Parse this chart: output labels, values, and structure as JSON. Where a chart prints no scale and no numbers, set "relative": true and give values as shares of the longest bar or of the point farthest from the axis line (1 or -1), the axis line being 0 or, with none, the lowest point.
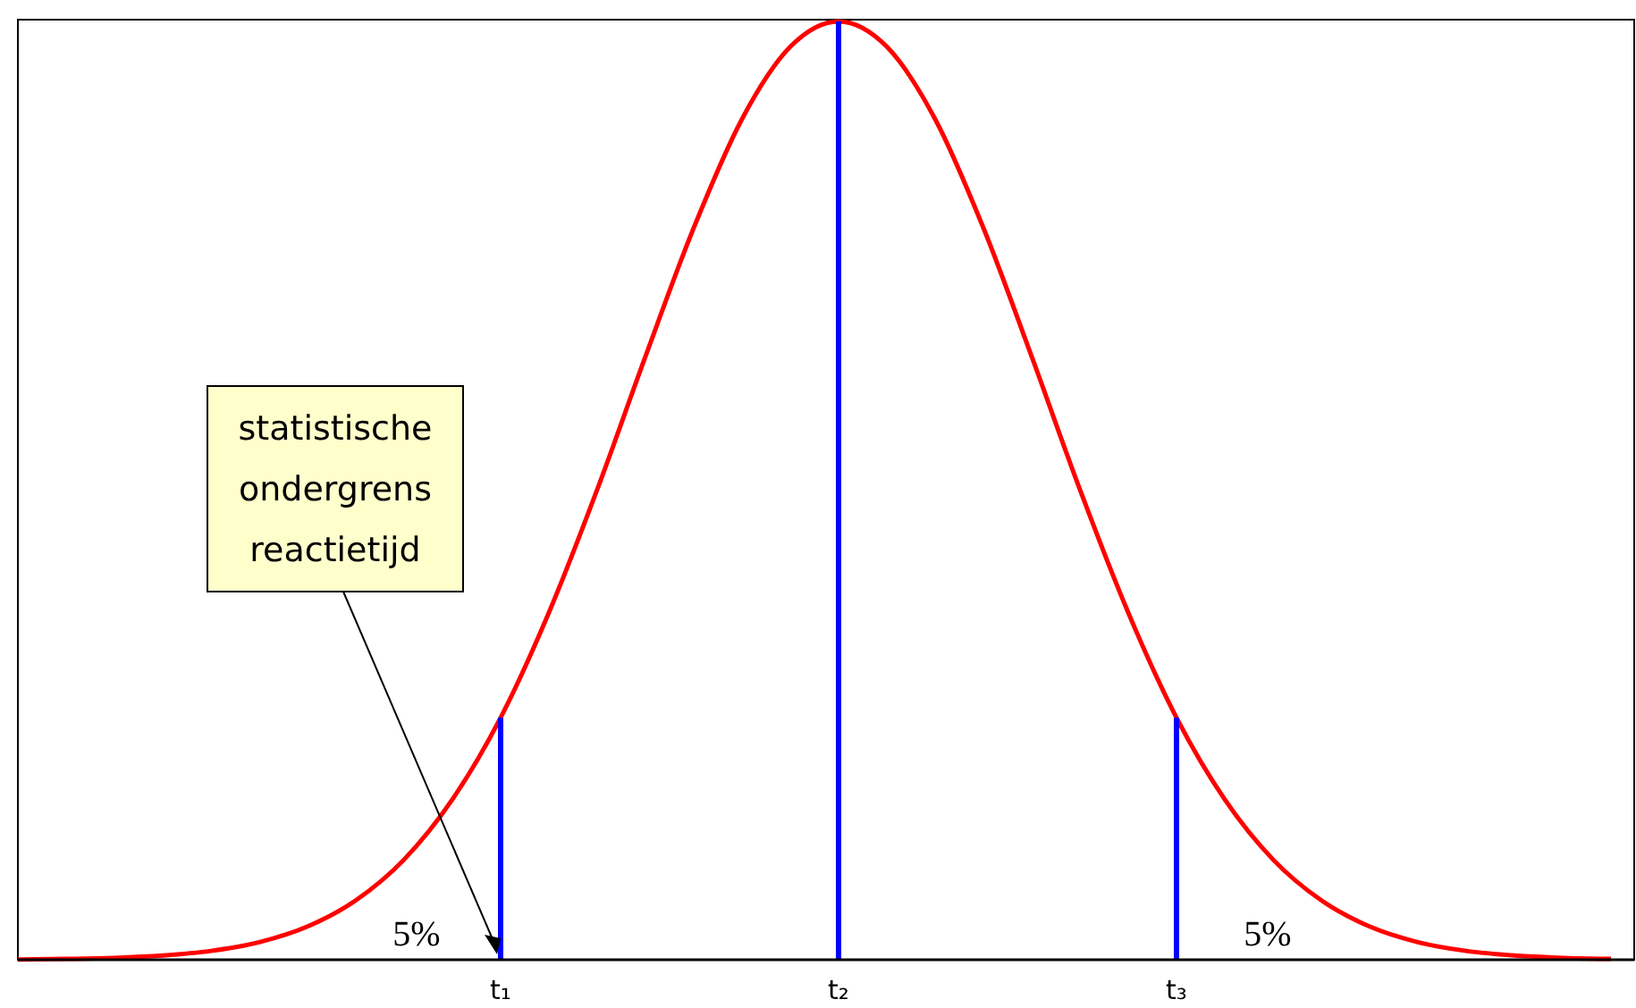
{
  "chart_data": {
    "type": "line",
    "relative": true,
    "categories": [
      null,
      null,
      null,
      null,
      null,
      null,
      null,
      null,
      null,
      null,
      "t₁",
      null,
      null,
      null,
      null,
      null,
      null,
      "t₂",
      null,
      null,
      null,
      null,
      null,
      null,
      "t₃",
      null,
      null,
      null,
      null,
      null,
      null,
      null,
      null,
      null
    ],
    "series": [
      {
        "color": "#ff0000",
        "values": [
          0.0003,
          0.0009,
          0.002,
          0.0045,
          0.0094,
          0.0187,
          0.0354,
          0.0633,
          0.1068,
          0.1708,
          0.258,
          0.37,
          0.501,
          0.643,
          0.78,
          0.896,
          0.973,
          1,
          0.973,
          0.896,
          0.78,
          0.643,
          0.501,
          0.37,
          0.258,
          0.1708,
          0.1068,
          0.0633,
          0.0354,
          0.0187,
          0.0094,
          0.0045,
          0.002,
          0.0009
        ]
      },
      {
        "type": "bar",
        "color": "#0000ff",
        "values": [
          null,
          null,
          null,
          null,
          null,
          null,
          null,
          null,
          null,
          null,
          0.258,
          null,
          null,
          null,
          null,
          null,
          null,
          1,
          null,
          null,
          null,
          null,
          null,
          null,
          0.258,
          null,
          null,
          null,
          null,
          null,
          null,
          null,
          null,
          null
        ]
      }
    ],
    "annotations": [
      "5%",
      "5%",
      {
        "text": "statistische ondergrens reactietijd",
        "x": "t₁",
        "y": 0
      }
    ],
    "marker": "none",
    "line_style": "solid",
    "grid": false,
    "legend": false
  }
}
